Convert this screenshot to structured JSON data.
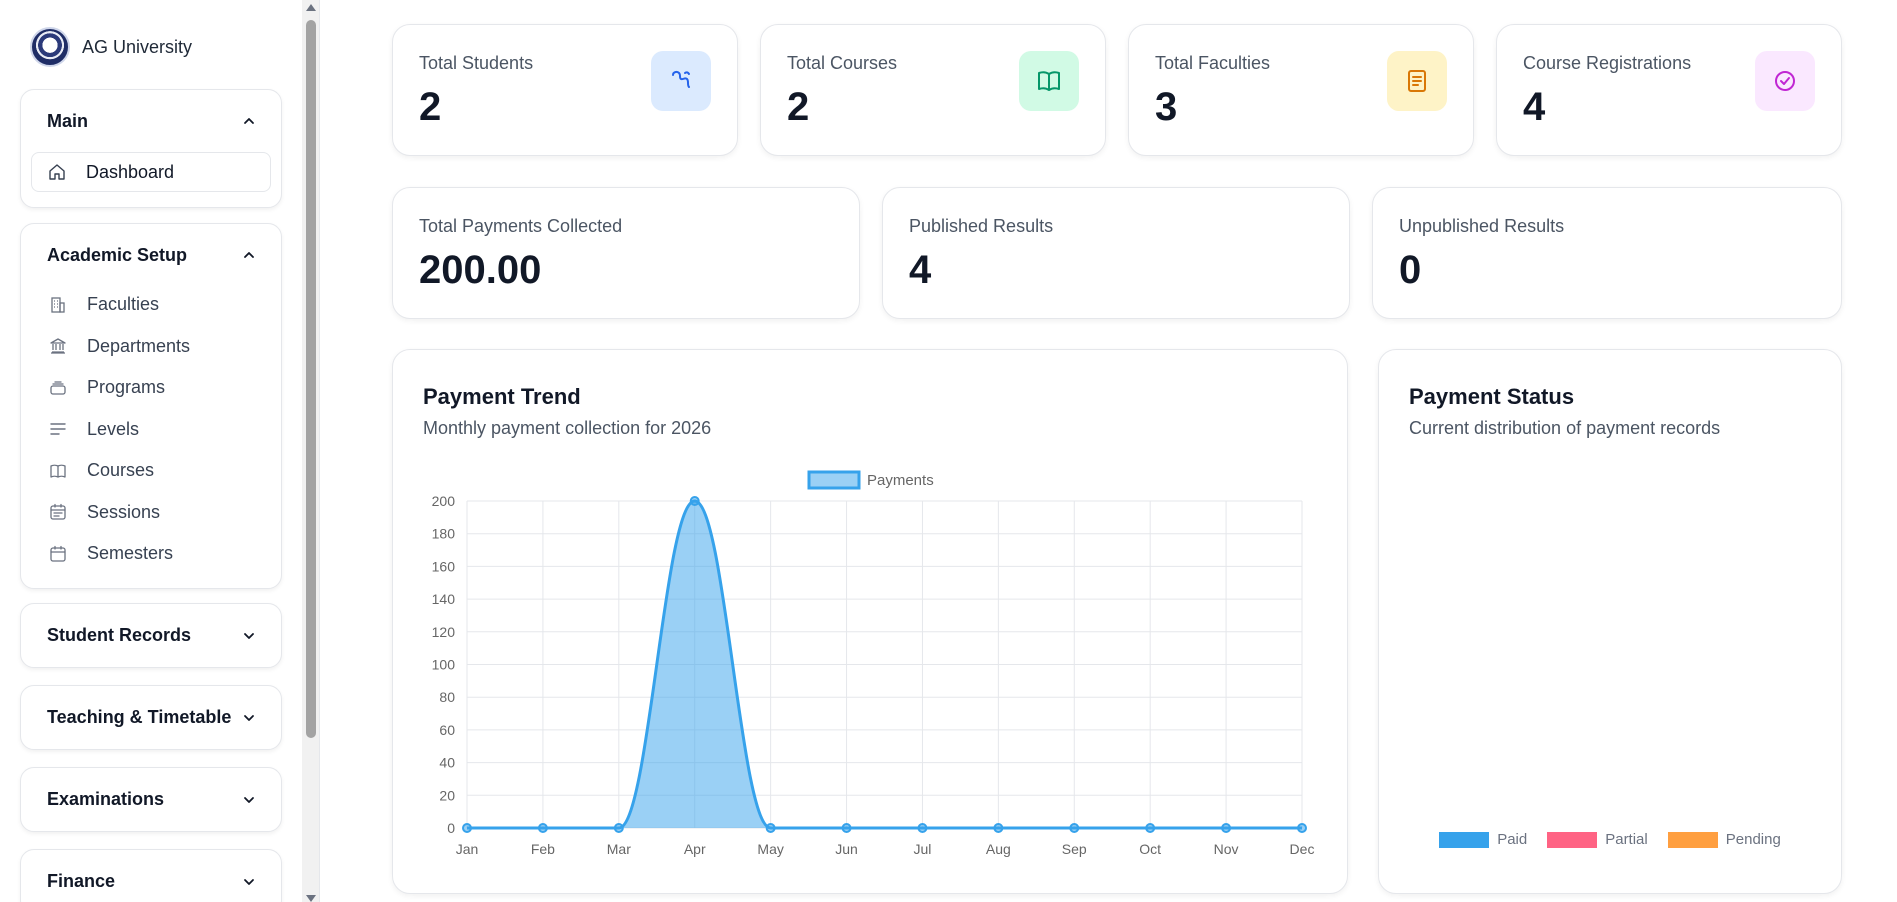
{
  "brand": {
    "name": "AG University"
  },
  "sidebar": {
    "groups": [
      {
        "title": "Main",
        "expanded": true,
        "items": [
          {
            "label": "Dashboard",
            "icon": "home-icon",
            "active": true
          }
        ]
      },
      {
        "title": "Academic Setup",
        "expanded": true,
        "items": [
          {
            "label": "Faculties",
            "icon": "building-icon"
          },
          {
            "label": "Departments",
            "icon": "landmark-icon"
          },
          {
            "label": "Programs",
            "icon": "layers-icon"
          },
          {
            "label": "Levels",
            "icon": "lines-icon"
          },
          {
            "label": "Courses",
            "icon": "book-icon"
          },
          {
            "label": "Sessions",
            "icon": "calendar-list-icon"
          },
          {
            "label": "Semesters",
            "icon": "calendar-icon"
          }
        ]
      },
      {
        "title": "Student Records",
        "expanded": false,
        "items": []
      },
      {
        "title": "Teaching & Timetable",
        "expanded": false,
        "items": []
      },
      {
        "title": "Examinations",
        "expanded": false,
        "items": []
      },
      {
        "title": "Finance",
        "expanded": false,
        "items": []
      }
    ]
  },
  "stats_top": [
    {
      "label": "Total Students",
      "value": "2",
      "icon": "users-icon",
      "color": "#2563eb",
      "bg": "#dbeafe"
    },
    {
      "label": "Total Courses",
      "value": "2",
      "icon": "book-open-icon",
      "color": "#059669",
      "bg": "#d1fae5"
    },
    {
      "label": "Total Faculties",
      "value": "3",
      "icon": "document-icon",
      "color": "#d97706",
      "bg": "#fef3c7"
    },
    {
      "label": "Course Registrations",
      "value": "4",
      "icon": "check-circle-icon",
      "color": "#c026d3",
      "bg": "#fae8ff"
    }
  ],
  "stats_bottom": [
    {
      "label": "Total Payments Collected",
      "value": "200.00"
    },
    {
      "label": "Published Results",
      "value": "4"
    },
    {
      "label": "Unpublished Results",
      "value": "0"
    }
  ],
  "payment_trend": {
    "title": "Payment Trend",
    "subtitle": "Monthly payment collection for 2026"
  },
  "payment_status": {
    "title": "Payment Status",
    "subtitle": "Current distribution of payment records"
  },
  "chart_data": [
    {
      "type": "area",
      "title": "Payment Trend",
      "categories": [
        "Jan",
        "Feb",
        "Mar",
        "Apr",
        "May",
        "Jun",
        "Jul",
        "Aug",
        "Sep",
        "Oct",
        "Nov",
        "Dec"
      ],
      "series": [
        {
          "name": "Payments",
          "values": [
            0,
            0,
            0,
            200,
            0,
            0,
            0,
            0,
            0,
            0,
            0,
            0
          ],
          "color": "#36a2eb"
        }
      ],
      "yticks": [
        "0",
        "20",
        "40",
        "60",
        "80",
        "100",
        "120",
        "140",
        "160",
        "180",
        "200"
      ],
      "ylim": [
        0,
        200
      ],
      "grid": true,
      "legend": "top"
    },
    {
      "type": "pie",
      "title": "Payment Status",
      "categories": [
        "Paid",
        "Partial",
        "Pending"
      ],
      "colors": [
        "#36a2eb",
        "#ff6384",
        "#ff9f40"
      ],
      "legend": "bottom"
    }
  ]
}
